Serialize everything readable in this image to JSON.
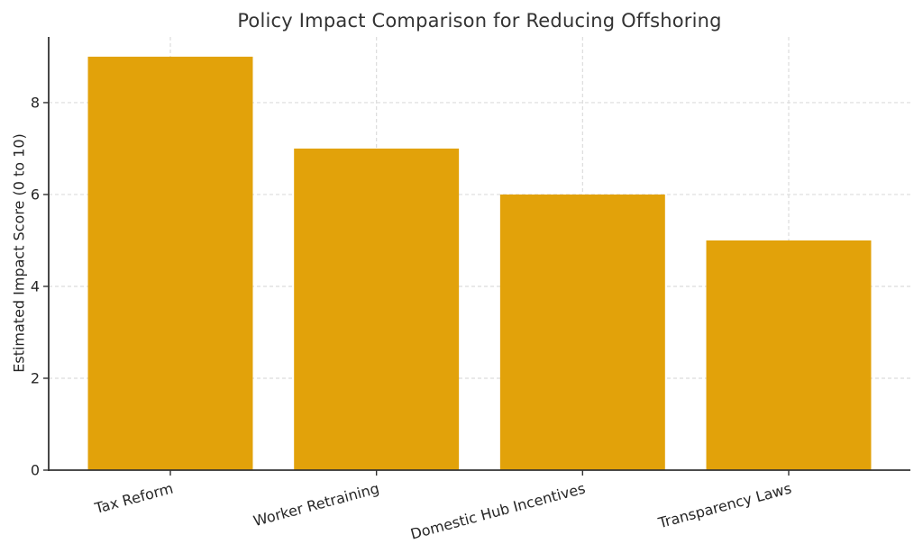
{
  "chart_data": {
    "type": "bar",
    "title": "Policy Impact Comparison for Reducing Offshoring",
    "xlabel": "",
    "ylabel": "Estimated Impact Score (0 to 10)",
    "categories": [
      "Tax Reform",
      "Worker Retraining",
      "Domestic Hub Incentives",
      "Transparency Laws"
    ],
    "values": [
      9,
      7,
      6,
      5
    ],
    "yticks": [
      0,
      2,
      4,
      6,
      8
    ],
    "ylim": [
      0,
      9.43
    ],
    "bar_color": "#E2A20A",
    "bar_width_fraction": 0.8,
    "grid": {
      "show": true,
      "axis": "both",
      "style": "dashed",
      "color": "#DCDCDC"
    },
    "legend": "none",
    "x_tick_rotation_deg": 15,
    "text_color": "#262626",
    "spine_color": "#333333",
    "background": "#FFFFFF"
  }
}
